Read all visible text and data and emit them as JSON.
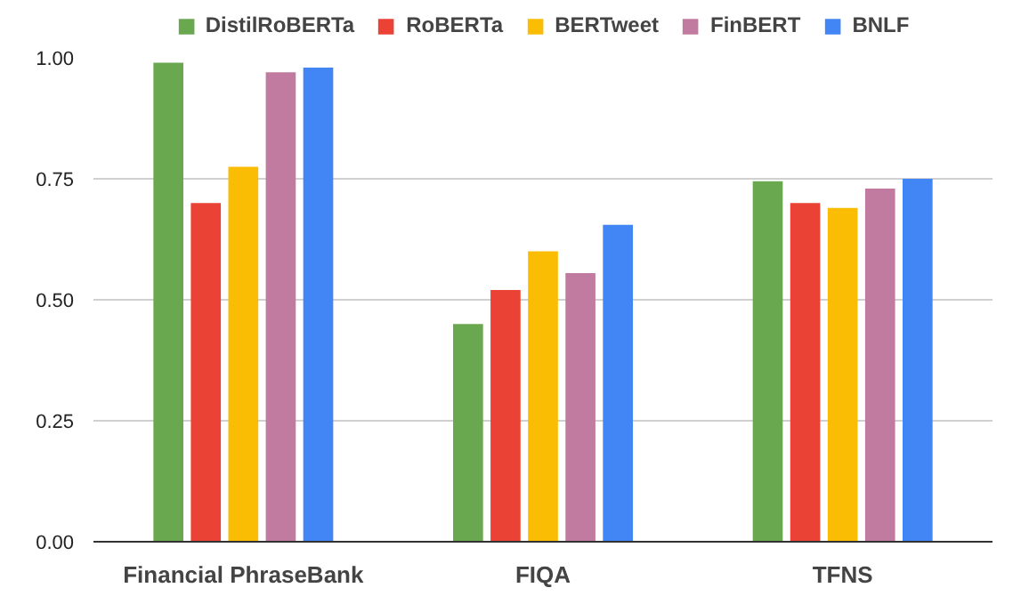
{
  "chart_data": {
    "type": "bar",
    "categories": [
      "Financial PhraseBank",
      "FIQA",
      "TFNS"
    ],
    "series": [
      {
        "name": "DistilRoBERTa",
        "color": "#6aa84f",
        "values": [
          0.99,
          0.45,
          0.745
        ]
      },
      {
        "name": "RoBERTa",
        "color": "#ea4335",
        "values": [
          0.7,
          0.52,
          0.7
        ]
      },
      {
        "name": "BERTweet",
        "color": "#fbbc04",
        "values": [
          0.775,
          0.6,
          0.69
        ]
      },
      {
        "name": "FinBERT",
        "color": "#c27ba0",
        "values": [
          0.97,
          0.555,
          0.73
        ]
      },
      {
        "name": "BNLF",
        "color": "#4285f4",
        "values": [
          0.98,
          0.655,
          0.75
        ]
      }
    ],
    "ylim": [
      0,
      1.0
    ],
    "yticks": [
      {
        "value": 0,
        "label": "0.00"
      },
      {
        "value": 0.25,
        "label": "0.25"
      },
      {
        "value": 0.5,
        "label": "0.50"
      },
      {
        "value": 0.75,
        "label": "0.75"
      },
      {
        "value": 1.0,
        "label": "1.00"
      }
    ],
    "grid": "y",
    "legend": "top"
  }
}
